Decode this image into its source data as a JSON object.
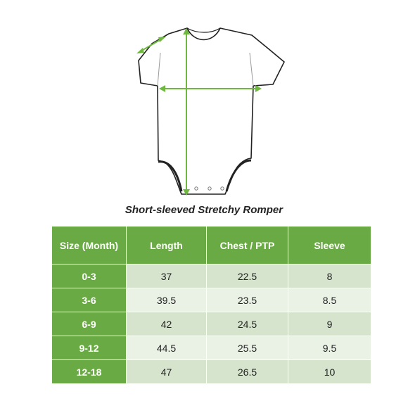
{
  "caption": "Short-sleeved Stretchy Romper",
  "colors": {
    "header_green": "#6aaa45",
    "measure_arrow": "#6fb83f",
    "row_dark": "#d6e4cd",
    "row_light": "#eaf1e5"
  },
  "table": {
    "headers": [
      "Size (Month)",
      "Length",
      "Chest / PTP",
      "Sleeve"
    ],
    "rows": [
      [
        "0-3",
        "37",
        "22.5",
        "8"
      ],
      [
        "3-6",
        "39.5",
        "23.5",
        "8.5"
      ],
      [
        "6-9",
        "42",
        "24.5",
        "9"
      ],
      [
        "9-12",
        "44.5",
        "25.5",
        "9.5"
      ],
      [
        "12-18",
        "47",
        "26.5",
        "10"
      ]
    ]
  }
}
